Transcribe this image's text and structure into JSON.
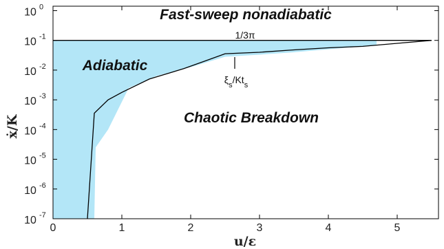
{
  "chart_data": {
    "type": "area",
    "xlabel": "u/ε",
    "ylabel": "ẋ/K",
    "xlim": [
      0,
      5.6
    ],
    "ylim_log10": [
      -7,
      0.15
    ],
    "y_scale": "log",
    "x_ticks": [
      "0",
      "1",
      "2",
      "3",
      "4",
      "5"
    ],
    "x_tick_values": [
      0,
      1,
      2,
      3,
      4,
      5
    ],
    "y_ticks": [
      {
        "base": "10",
        "exp": "0"
      },
      {
        "base": "10",
        "exp": "-1"
      },
      {
        "base": "10",
        "exp": "-2"
      },
      {
        "base": "10",
        "exp": "-3"
      },
      {
        "base": "10",
        "exp": "-4"
      },
      {
        "base": "10",
        "exp": "-5"
      },
      {
        "base": "10",
        "exp": "-6"
      },
      {
        "base": "10",
        "exp": "-7"
      }
    ],
    "y_tick_log_values": [
      0,
      -1,
      -2,
      -3,
      -4,
      -5,
      -6,
      -7
    ],
    "grid": false,
    "colors": {
      "fill": "#b3e6f7",
      "line": "#000000"
    },
    "adiabatic_fill_boundary": {
      "x": [
        0.6,
        0.62,
        0.8,
        1.1,
        1.5,
        2.0,
        2.5,
        3.0,
        3.5,
        4.0,
        4.5,
        4.7
      ],
      "y_log10": [
        -7,
        -4.6,
        -4.0,
        -2.6,
        -2.2,
        -1.9,
        -1.55,
        -1.48,
        -1.4,
        -1.3,
        -1.2,
        -1.15
      ]
    },
    "boundary_line": {
      "x": [
        0.5,
        0.6,
        0.8,
        1.0,
        1.4,
        1.9,
        2.2,
        2.5,
        3.0,
        3.5,
        4.0,
        4.5,
        5.0,
        5.5
      ],
      "y_log10": [
        -7,
        -3.45,
        -3.0,
        -2.75,
        -2.3,
        -1.95,
        -1.7,
        -1.45,
        -1.4,
        -1.32,
        -1.25,
        -1.2,
        -1.1,
        -1.0
      ]
    },
    "horizontal_line": {
      "y_log10": -1,
      "label": "1/3π"
    },
    "regions": {
      "fast_sweep": "Fast-sweep nonadiabatic",
      "adiabatic": "Adiabatic",
      "chaotic": "Chaotic Breakdown"
    },
    "annotation": {
      "label": "ξs/Kts",
      "x": 2.55,
      "y_log10": -1.5
    }
  }
}
